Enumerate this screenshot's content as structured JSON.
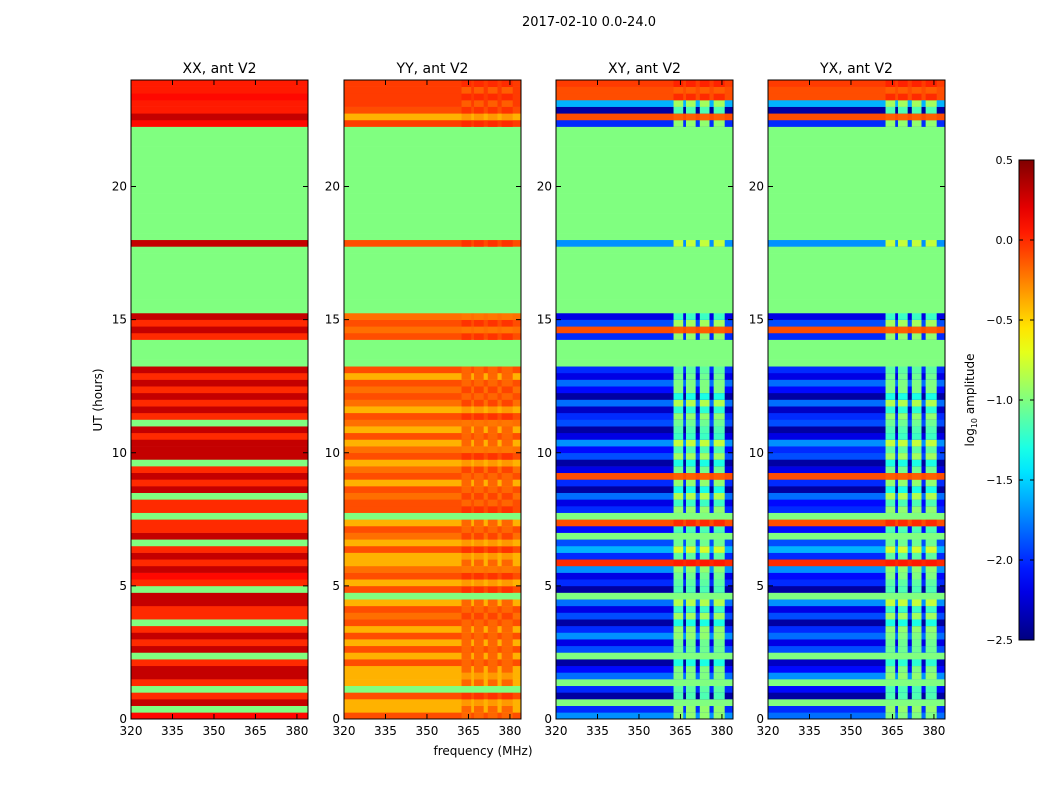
{
  "chart_data": {
    "type": "heatmap",
    "title": "2017-02-10 0.0-24.0",
    "xlabel": "frequency (MHz)",
    "ylabel": "UT (hours)",
    "xlim": [
      320,
      384
    ],
    "ylim": [
      0,
      24
    ],
    "xticks": [
      320,
      335,
      350,
      365,
      380
    ],
    "yticks": [
      0,
      5,
      10,
      15,
      20
    ],
    "row_hours": 0.25,
    "colorbar": {
      "label_main": "log",
      "label_sub": "10",
      "label_rest": " amplitude",
      "range": [
        -2.5,
        0.5
      ],
      "ticks": [
        0.5,
        0.0,
        -0.5,
        -1.0,
        -1.5,
        -2.0,
        -2.5
      ],
      "tick_labels": [
        "0.5",
        "0.0",
        "−0.5",
        "−1.0",
        "−1.5",
        "−2.0",
        "−2.5"
      ],
      "colormap": "jet"
    },
    "rfi_channels_mhz": [
      [
        362.5,
        366
      ],
      [
        367,
        370.5
      ],
      [
        372,
        375.5
      ],
      [
        377,
        381
      ]
    ],
    "panels": [
      {
        "title": "XX, ant V2",
        "rfi_value": null,
        "rows": [
          0.1,
          -1,
          0.3,
          0,
          -1,
          0,
          0.3,
          0.3,
          0,
          -1,
          0.3,
          0,
          0.3,
          0,
          -1,
          0,
          0,
          0.3,
          0.3,
          -1,
          0,
          0.1,
          0.3,
          0,
          0.3,
          0,
          -1,
          0.3,
          0,
          0,
          -1,
          0,
          0,
          -1,
          0.3,
          0,
          0.3,
          0,
          -1,
          0.3,
          0.3,
          0.3,
          0,
          0.3,
          -1,
          0,
          0.3,
          0,
          0.3,
          0,
          0.3,
          0,
          0.3,
          -1,
          -1,
          -1,
          -1,
          0,
          0.3,
          0,
          0.3,
          -1,
          -1,
          -1,
          -1,
          -1,
          -1,
          -1,
          -1,
          -1,
          -1,
          0.3,
          -1,
          -1,
          -1,
          -1,
          -1,
          -1,
          -1,
          -1,
          -1,
          -1,
          -1,
          -1,
          -1,
          -1,
          -1,
          -1,
          -1,
          0.1,
          0.3,
          0.05,
          0.05,
          0.1,
          0.05,
          0.05
        ]
      },
      {
        "title": "YY, ant V2",
        "rfi_value": -0.05,
        "rows": [
          -0.1,
          -0.4,
          -0.4,
          -0.1,
          -1,
          -0.4,
          -0.4,
          -0.4,
          -0.1,
          -0.4,
          -0.1,
          -0.4,
          -0.1,
          -0.4,
          -0.1,
          -0.2,
          -0.1,
          -0.4,
          -1,
          -0.1,
          -0.4,
          -0.1,
          -0.2,
          -0.4,
          -0.4,
          -0.1,
          -0.4,
          -0.2,
          -0.1,
          -0.4,
          -1,
          -0.1,
          -0.1,
          -0.2,
          -0.1,
          -0.4,
          -0.1,
          -0.2,
          -0.4,
          -0.1,
          -0.2,
          -0.4,
          -0.1,
          -0.4,
          -0.2,
          -0.1,
          -0.4,
          -0.2,
          -0.1,
          -0.2,
          -0.1,
          -0.4,
          -0.1,
          -1,
          -1,
          -1,
          -1,
          -0.1,
          -0.2,
          -0.1,
          -0.2,
          -1,
          -1,
          -1,
          -1,
          -1,
          -1,
          -1,
          -1,
          -1,
          -1,
          -0.1,
          -1,
          -1,
          -1,
          -1,
          -1,
          -1,
          -1,
          -1,
          -1,
          -1,
          -1,
          -1,
          -1,
          -1,
          -1,
          -1,
          -1,
          -0.05,
          -0.4,
          -0.1,
          -0.05,
          -0.05,
          -0.05,
          -0.05
        ]
      },
      {
        "title": "XY, ant V2",
        "rfi_value": 0.0,
        "rows": [
          -1.7,
          -2.0,
          -1.0,
          -2.4,
          -2.0,
          -1.0,
          -1.8,
          -2.1,
          -2.4,
          -1.0,
          -1.9,
          -2.2,
          -1.7,
          -2.0,
          -2.4,
          -1.9,
          -2.2,
          -1.8,
          -1.0,
          -2.4,
          -2.0,
          -2.2,
          -1.7,
          0.0,
          -2.0,
          -1.6,
          -1.9,
          -1.0,
          -2.1,
          -0.1,
          -1.0,
          -2.0,
          -2.2,
          -1.8,
          -2.4,
          -2.0,
          -0.1,
          -2.2,
          -2.4,
          -1.9,
          -2.1,
          -1.7,
          -2.2,
          -2.4,
          -1.9,
          -2.0,
          -2.3,
          -1.8,
          -2.4,
          -2.1,
          -1.8,
          -2.2,
          -2.0,
          -1,
          -1,
          -1,
          -1,
          -2.0,
          -0.1,
          -1.9,
          -2.2,
          -1,
          -1,
          -1,
          -1,
          -1,
          -1,
          -1,
          -1,
          -1,
          -1,
          -1.7,
          -1,
          -1,
          -1,
          -1,
          -1,
          -1,
          -1,
          -1,
          -1,
          -1,
          -1,
          -1,
          -1,
          -1,
          -1,
          -1,
          -1,
          -2.0,
          -0.1,
          -2.4,
          -1.6,
          -0.1,
          -0.1,
          -0.05
        ]
      },
      {
        "title": "YX, ant V2",
        "rfi_value": 0.0,
        "rows": [
          -1.8,
          -2.0,
          -1.0,
          -2.4,
          -2.1,
          -1.0,
          -1.7,
          -2.1,
          -2.3,
          -1.0,
          -1.9,
          -2.2,
          -1.8,
          -2.0,
          -2.4,
          -1.9,
          -2.2,
          -1.7,
          -1.0,
          -2.4,
          -2.0,
          -2.1,
          -1.7,
          0.0,
          -2.0,
          -1.6,
          -1.9,
          -1.0,
          -2.1,
          -0.1,
          -1.0,
          -2.0,
          -2.1,
          -1.8,
          -2.4,
          -2.0,
          -0.1,
          -2.2,
          -2.4,
          -1.9,
          -2.0,
          -1.7,
          -2.2,
          -2.4,
          -1.9,
          -2.0,
          -2.3,
          -1.8,
          -2.4,
          -2.1,
          -1.8,
          -2.2,
          -2.0,
          -1,
          -1,
          -1,
          -1,
          -2.0,
          -0.1,
          -1.9,
          -2.2,
          -1,
          -1,
          -1,
          -1,
          -1,
          -1,
          -1,
          -1,
          -1,
          -1,
          -1.7,
          -1,
          -1,
          -1,
          -1,
          -1,
          -1,
          -1,
          -1,
          -1,
          -1,
          -1,
          -1,
          -1,
          -1,
          -1,
          -1,
          -1,
          -2.0,
          -0.1,
          -2.4,
          -1.6,
          -0.1,
          -0.1,
          -0.05
        ]
      }
    ]
  }
}
